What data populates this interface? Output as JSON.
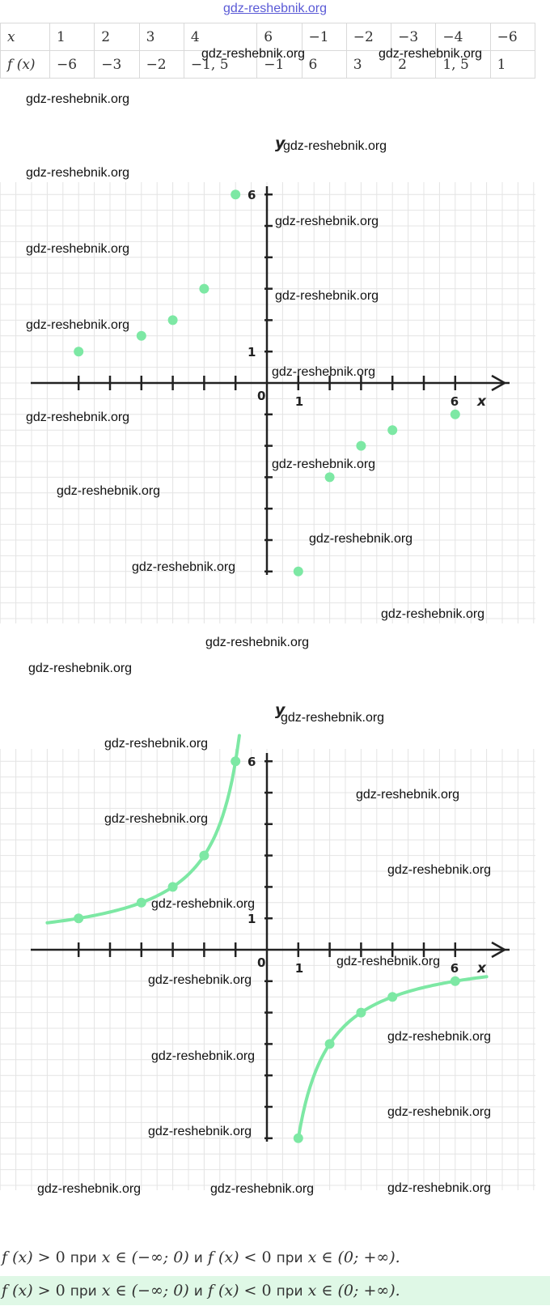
{
  "site_header": "gdz-reshebnik.org",
  "table": {
    "x_label": "x",
    "fx_label": "f (x)",
    "x_values": [
      "1",
      "2",
      "3",
      "4",
      "6",
      "−1",
      "−2",
      "−3",
      "−4",
      "−6"
    ],
    "fx_values": [
      "−6",
      "−3",
      "−2",
      "−1, 5",
      "−1",
      "6",
      "3",
      "2",
      "1, 5",
      "1"
    ]
  },
  "watermark_text": "gdz-reshebnik.org",
  "chart_data": [
    {
      "type": "scatter",
      "title": "",
      "xlabel": "x",
      "ylabel": "y",
      "xlim": [
        -7.5,
        7.5
      ],
      "ylim": [
        -6.5,
        6.5
      ],
      "grid": true,
      "axis_labels": {
        "origin": "0",
        "x_unit": "1",
        "x_mark": "6",
        "y_unit": "1",
        "y_mark": "6"
      },
      "points": [
        [
          1,
          -6
        ],
        [
          2,
          -3
        ],
        [
          3,
          -2
        ],
        [
          4,
          -1.5
        ],
        [
          6,
          -1
        ],
        [
          -1,
          6
        ],
        [
          -2,
          3
        ],
        [
          -3,
          2
        ],
        [
          -4,
          1.5
        ],
        [
          -6,
          1
        ]
      ],
      "color": "#7de8a4"
    },
    {
      "type": "line",
      "title": "",
      "xlabel": "x",
      "ylabel": "y",
      "xlim": [
        -7.5,
        7.5
      ],
      "ylim": [
        -6.5,
        6.5
      ],
      "grid": true,
      "function": "y = -6/x",
      "axis_labels": {
        "origin": "0",
        "x_unit": "1",
        "x_mark": "6",
        "y_unit": "1",
        "y_mark": "6"
      },
      "points": [
        [
          1,
          -6
        ],
        [
          2,
          -3
        ],
        [
          3,
          -2
        ],
        [
          4,
          -1.5
        ],
        [
          6,
          -1
        ],
        [
          -1,
          6
        ],
        [
          -2,
          3
        ],
        [
          -3,
          2
        ],
        [
          -4,
          1.5
        ],
        [
          -6,
          1
        ]
      ],
      "color": "#7de8a4"
    }
  ],
  "answer": {
    "fx": "f (x)",
    "gt": " > 0 ",
    "pri1": "при",
    "x1": " x ∈ (−∞; 0) ",
    "and": "и",
    "fx2": " f (x)",
    "lt": " < 0 ",
    "pri2": "при",
    "x2": " x ∈ (0; +∞)."
  }
}
